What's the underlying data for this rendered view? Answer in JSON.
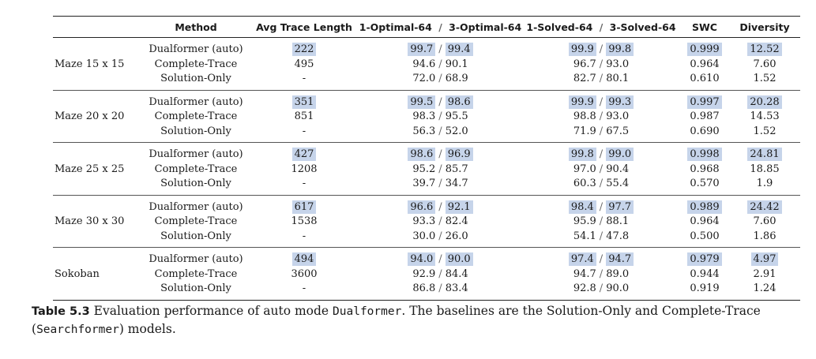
{
  "table": {
    "headers": {
      "env": "",
      "method": "Method",
      "avg": "Avg Trace Length",
      "optimal_a": "1-Optimal-64",
      "optimal_sep": "/",
      "optimal_b": "3-Optimal-64",
      "solved_a": "1-Solved-64",
      "solved_sep": "/",
      "solved_b": "3-Solved-64",
      "swc": "SWC",
      "diversity": "Diversity"
    },
    "groups": [
      {
        "env": "Maze 15 x 15",
        "rows": [
          {
            "method": "Dualformer (auto)",
            "avg": "222",
            "opt1": "99.7",
            "opt3": "99.4",
            "sol1": "99.9",
            "sol3": "99.8",
            "swc": "0.999",
            "div": "12.52"
          },
          {
            "method": "Complete-Trace",
            "avg": "495",
            "opt1": "94.6",
            "opt3": "90.1",
            "sol1": "96.7",
            "sol3": "93.0",
            "swc": "0.964",
            "div": "7.60"
          },
          {
            "method": "Solution-Only",
            "avg": "-",
            "opt1": "72.0",
            "opt3": "68.9",
            "sol1": "82.7",
            "sol3": "80.1",
            "swc": "0.610",
            "div": "1.52"
          }
        ]
      },
      {
        "env": "Maze 20 x 20",
        "rows": [
          {
            "method": "Dualformer (auto)",
            "avg": "351",
            "opt1": "99.5",
            "opt3": "98.6",
            "sol1": "99.9",
            "sol3": "99.3",
            "swc": "0.997",
            "div": "20.28"
          },
          {
            "method": "Complete-Trace",
            "avg": "851",
            "opt1": "98.3",
            "opt3": "95.5",
            "sol1": "98.8",
            "sol3": "93.0",
            "swc": "0.987",
            "div": "14.53"
          },
          {
            "method": "Solution-Only",
            "avg": "-",
            "opt1": "56.3",
            "opt3": "52.0",
            "sol1": "71.9",
            "sol3": "67.5",
            "swc": "0.690",
            "div": "1.52"
          }
        ]
      },
      {
        "env": "Maze 25 x 25",
        "rows": [
          {
            "method": "Dualformer (auto)",
            "avg": "427",
            "opt1": "98.6",
            "opt3": "96.9",
            "sol1": "99.8",
            "sol3": "99.0",
            "swc": "0.998",
            "div": "24.81"
          },
          {
            "method": "Complete-Trace",
            "avg": "1208",
            "opt1": "95.2",
            "opt3": "85.7",
            "sol1": "97.0",
            "sol3": "90.4",
            "swc": "0.968",
            "div": "18.85"
          },
          {
            "method": "Solution-Only",
            "avg": "-",
            "opt1": "39.7",
            "opt3": "34.7",
            "sol1": "60.3",
            "sol3": "55.4",
            "swc": "0.570",
            "div": "1.9"
          }
        ]
      },
      {
        "env": "Maze 30 x 30",
        "rows": [
          {
            "method": "Dualformer (auto)",
            "avg": "617",
            "opt1": "96.6",
            "opt3": "92.1",
            "sol1": "98.4",
            "sol3": "97.7",
            "swc": "0.989",
            "div": "24.42"
          },
          {
            "method": "Complete-Trace",
            "avg": "1538",
            "opt1": "93.3",
            "opt3": "82.4",
            "sol1": "95.9",
            "sol3": "88.1",
            "swc": "0.964",
            "div": "7.60"
          },
          {
            "method": "Solution-Only",
            "avg": "-",
            "opt1": "30.0",
            "opt3": "26.0",
            "sol1": "54.1",
            "sol3": "47.8",
            "swc": "0.500",
            "div": "1.86"
          }
        ]
      },
      {
        "env": "Sokoban",
        "rows": [
          {
            "method": "Dualformer (auto)",
            "avg": "494",
            "opt1": "94.0",
            "opt3": "90.0",
            "sol1": "97.4",
            "sol3": "94.7",
            "swc": "0.979",
            "div": "4.97"
          },
          {
            "method": "Complete-Trace",
            "avg": "3600",
            "opt1": "92.9",
            "opt3": "84.4",
            "sol1": "94.7",
            "sol3": "89.0",
            "swc": "0.944",
            "div": "2.91"
          },
          {
            "method": "Solution-Only",
            "avg": "-",
            "opt1": "86.8",
            "opt3": "83.4",
            "sol1": "92.8",
            "sol3": "90.0",
            "swc": "0.919",
            "div": "1.24"
          }
        ]
      }
    ],
    "highlight_color": "#c6d4ea"
  },
  "caption": {
    "label": "Table 5.3",
    "text_1": " Evaluation performance of auto mode ",
    "model": "Dualformer",
    "text_2": ". The baselines are the Solution-Only and Complete-Trace (",
    "baseline_model": "Searchformer",
    "text_3": ") models."
  }
}
